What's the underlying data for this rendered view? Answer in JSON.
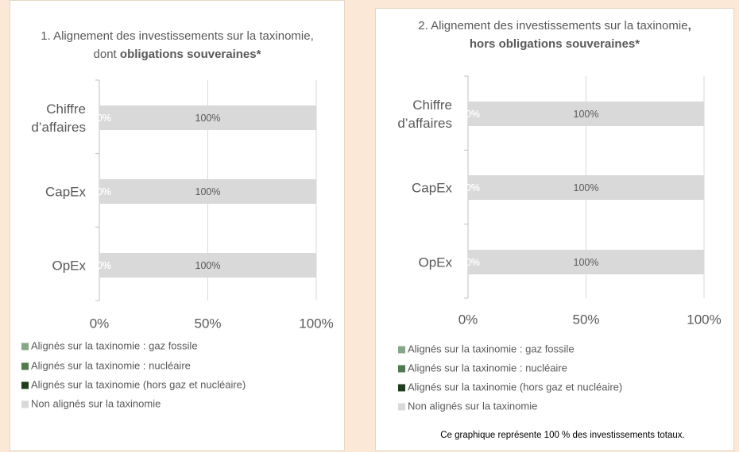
{
  "chart_data": [
    {
      "type": "bar",
      "orientation": "horizontal",
      "stacked": true,
      "title": "1. Alignement des investissements sur la taxinomie, dont ",
      "title_emphasis": "obligations souveraines*",
      "categories": [
        "Chiffre d’affaires",
        "CapEx",
        "OpEx"
      ],
      "series": [
        {
          "name": "Alignés sur la taxinomie : gaz fossile",
          "color": "#86a686",
          "values": [
            0,
            0,
            0
          ],
          "value_labels": [
            "0%",
            "0%",
            "0%"
          ]
        },
        {
          "name": "Alignés sur la taxinomie : nucléaire",
          "color": "#4e7a4e",
          "values": [
            0,
            0,
            0
          ],
          "value_labels": [
            "0%",
            "0%",
            "0%"
          ]
        },
        {
          "name": "Alignés sur la taxinomie (hors gaz et nucléaire)",
          "color": "#1d3d1d",
          "values": [
            0,
            0,
            0
          ],
          "value_labels": [
            "0%",
            "0%",
            "0%"
          ]
        },
        {
          "name": "Non alignés sur la taxinomie",
          "color": "#d9d9d9",
          "values": [
            100,
            100,
            100
          ],
          "value_labels": [
            "100%",
            "100%",
            "100%"
          ]
        }
      ],
      "xlim": [
        0,
        100
      ],
      "xticks": [
        {
          "value": 0,
          "label": "0%"
        },
        {
          "value": 50,
          "label": "50%"
        },
        {
          "value": 100,
          "label": "100%"
        }
      ],
      "grid": true
    },
    {
      "type": "bar",
      "orientation": "horizontal",
      "stacked": true,
      "title": "2. Alignement des investissements sur la taxinomie",
      "title_emphasis": ", hors obligations souveraines*",
      "categories": [
        "Chiffre d’affaires",
        "CapEx",
        "OpEx"
      ],
      "series": [
        {
          "name": "Alignés sur la taxinomie : gaz fossile",
          "color": "#86a686",
          "values": [
            0,
            0,
            0
          ],
          "value_labels": [
            "0%",
            "0%",
            "0%"
          ]
        },
        {
          "name": "Alignés sur la taxinomie : nucléaire",
          "color": "#4e7a4e",
          "values": [
            0,
            0,
            0
          ],
          "value_labels": [
            "0%",
            "0%",
            "0%"
          ]
        },
        {
          "name": "Alignés sur la taxinomie (hors gaz et nucléaire)",
          "color": "#1d3d1d",
          "values": [
            0,
            0,
            0
          ],
          "value_labels": [
            "0%",
            "0%",
            "0%"
          ]
        },
        {
          "name": "Non alignés sur la taxinomie",
          "color": "#d9d9d9",
          "values": [
            100,
            100,
            100
          ],
          "value_labels": [
            "100%",
            "100%",
            "100%"
          ]
        }
      ],
      "xlim": [
        0,
        100
      ],
      "xticks": [
        {
          "value": 0,
          "label": "0%"
        },
        {
          "value": 50,
          "label": "50%"
        },
        {
          "value": 100,
          "label": "100%"
        }
      ],
      "grid": true,
      "footnote": "Ce graphique représente 100 % des investissements totaux."
    }
  ]
}
